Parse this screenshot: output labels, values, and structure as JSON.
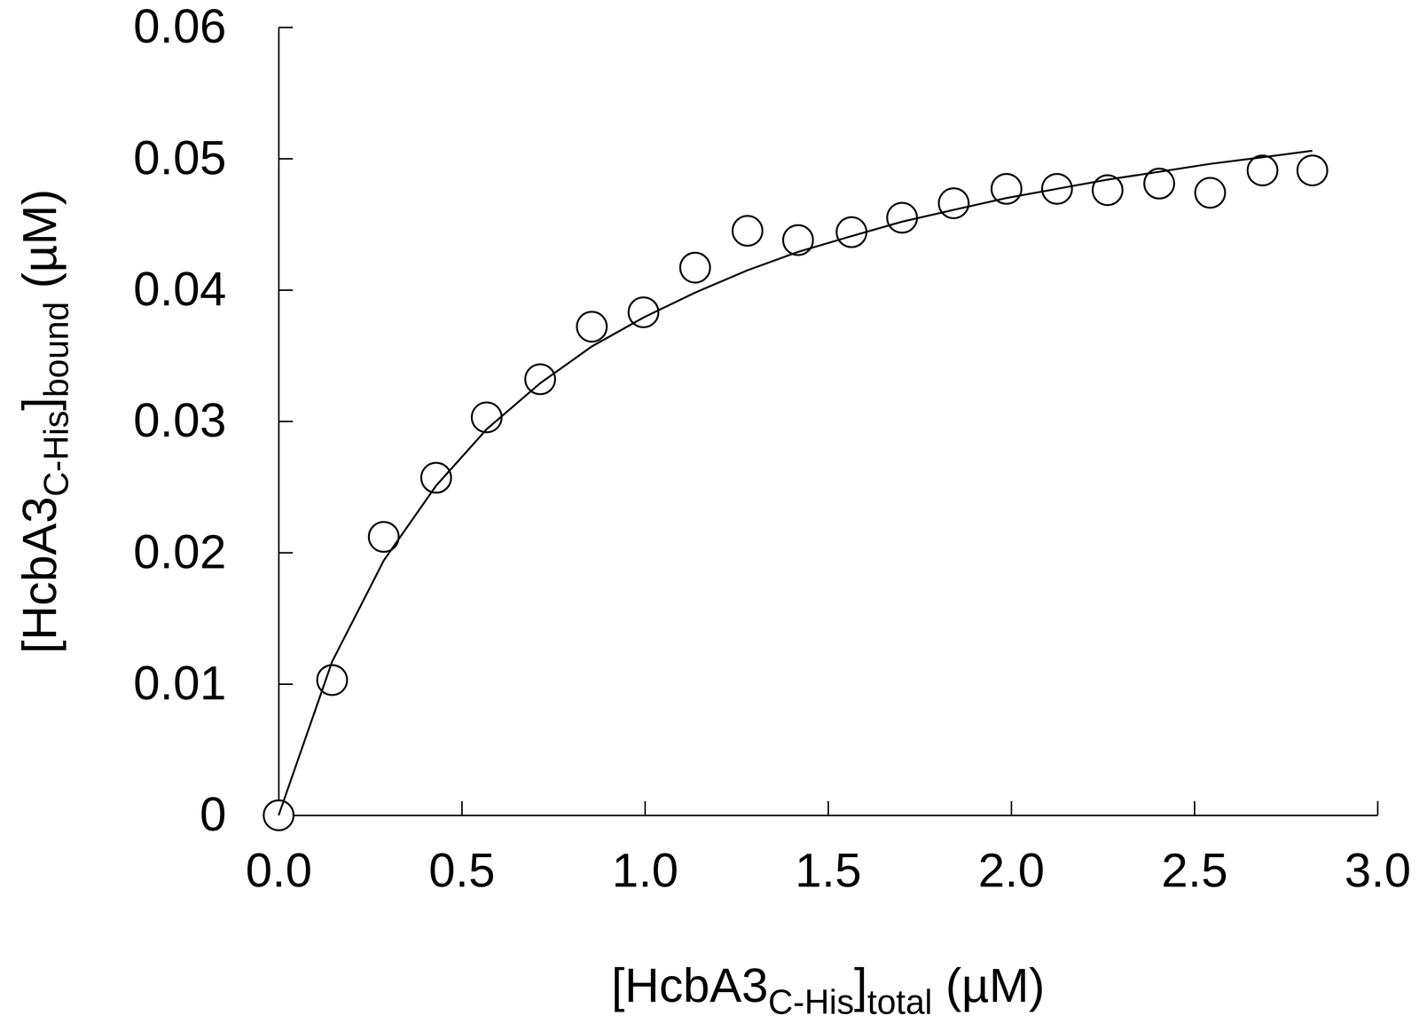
{
  "chart_data": {
    "type": "scatter",
    "xlabel": [
      "[HcbA3",
      "C-His",
      "]",
      "total",
      " (µM)"
    ],
    "ylabel": [
      "[HcbA3",
      "C-His",
      "]",
      "bound",
      " (µM)"
    ],
    "x": [
      0,
      0.146,
      0.287,
      0.43,
      0.568,
      0.714,
      0.855,
      0.996,
      1.137,
      1.28,
      1.418,
      1.564,
      1.702,
      1.843,
      1.987,
      2.125,
      2.263,
      2.404,
      2.543,
      2.686,
      2.822
    ],
    "series": [
      {
        "type": "scatter",
        "marker": "circle",
        "color": "#000000",
        "values": [
          0,
          0.0103,
          0.0212,
          0.0257,
          0.0303,
          0.0332,
          0.0372,
          0.0383,
          0.0417,
          0.0445,
          0.0438,
          0.0444,
          0.0455,
          0.0466,
          0.0477,
          0.0477,
          0.0476,
          0.0481,
          0.0474,
          0.0491,
          0.0491
        ]
      },
      {
        "type": "line",
        "line_style": "solid",
        "color": "#000000",
        "values": [
          0,
          0.0117,
          0.0194,
          0.0251,
          0.0294,
          0.0329,
          0.0357,
          0.0379,
          0.0398,
          0.0415,
          0.0429,
          0.0441,
          0.0452,
          0.0461,
          0.047,
          0.0477,
          0.0484,
          0.049,
          0.0496,
          0.0501,
          0.0506
        ]
      }
    ],
    "xlim": [
      0,
      3
    ],
    "xticks": [
      {
        "value": 0,
        "label": "0.0"
      },
      0.5,
      {
        "value": 1,
        "label": "1.0"
      },
      1.5,
      {
        "value": 2,
        "label": "2.0"
      },
      2.5,
      {
        "value": 3,
        "label": "3.0"
      }
    ],
    "ylim": [
      0,
      0.06
    ],
    "yticks": [
      0,
      0.01,
      0.02,
      0.03,
      0.04,
      0.05,
      0.06
    ],
    "grid": false
  }
}
